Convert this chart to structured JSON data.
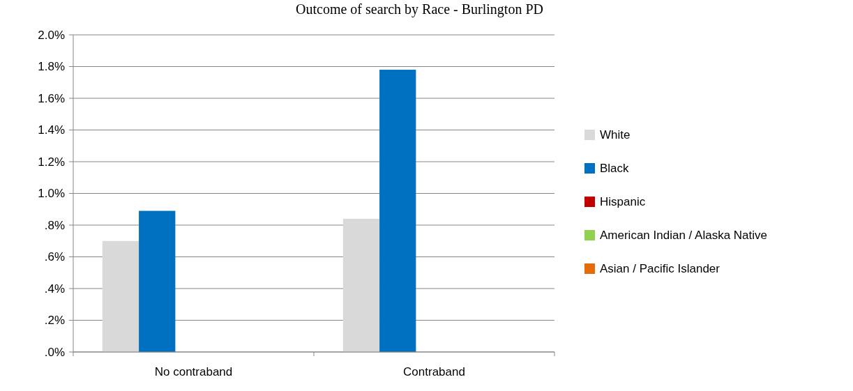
{
  "chart_data": {
    "type": "bar",
    "title": "Outcome of search by Race - Burlington PD",
    "categories": [
      "No contraband",
      "Contraband"
    ],
    "series": [
      {
        "name": "White",
        "color": "#d9d9d9",
        "values": [
          0.7,
          0.84
        ]
      },
      {
        "name": "Black",
        "color": "#0070c0",
        "values": [
          0.89,
          1.78
        ]
      },
      {
        "name": "Hispanic",
        "color": "#c00000",
        "values": [
          0,
          0
        ]
      },
      {
        "name": "American Indian / Alaska Native",
        "color": "#92d050",
        "values": [
          0,
          0
        ]
      },
      {
        "name": "Asian / Pacific Islander",
        "color": "#e36c09",
        "values": [
          0,
          0
        ]
      }
    ],
    "ylim": [
      0,
      2
    ],
    "yticks": [
      {
        "value": 0,
        "label": ".0%"
      },
      {
        "value": 0.2,
        "label": ".2%"
      },
      {
        "value": 0.4,
        "label": ".4%"
      },
      {
        "value": 0.6,
        "label": ".6%"
      },
      {
        "value": 0.8,
        "label": ".8%"
      },
      {
        "value": 1,
        "label": "1.0%"
      },
      {
        "value": 1.2,
        "label": "1.2%"
      },
      {
        "value": 1.4,
        "label": "1.4%"
      },
      {
        "value": 1.6,
        "label": "1.6%"
      },
      {
        "value": 1.8,
        "label": "1.8%"
      },
      {
        "value": 2,
        "label": "2.0%"
      }
    ],
    "grid": "y",
    "legend": "right"
  }
}
